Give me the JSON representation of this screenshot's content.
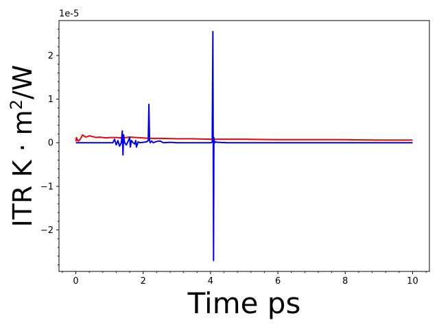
{
  "chart_data": {
    "type": "line",
    "title": "",
    "xlabel": "Time ps",
    "ylabel": "ITR K · m²/W",
    "ylabel_parts": {
      "main": "ITR K · m",
      "sup": "2",
      "tail": "/W"
    },
    "y_offset_label": "1e-5",
    "xlim": [
      -0.5,
      10.5
    ],
    "ylim": [
      -2.95,
      2.8
    ],
    "y_scale_note": "values in units of 1e-5",
    "x_ticks": [
      0,
      2,
      4,
      6,
      8,
      10
    ],
    "x_tick_labels": [
      "0",
      "2",
      "4",
      "6",
      "8",
      "10"
    ],
    "y_ticks": [
      -2,
      -1,
      0,
      1,
      2
    ],
    "y_tick_labels": [
      "−2",
      "−1",
      "0",
      "1",
      "2"
    ],
    "grid": false,
    "legend": "none",
    "series": [
      {
        "color": "#e8000b",
        "x": [
          0.0,
          0.02,
          0.05,
          0.08,
          0.12,
          0.16,
          0.2,
          0.25,
          0.3,
          0.35,
          0.4,
          0.5,
          0.6,
          0.7,
          0.8,
          0.9,
          1.0,
          1.2,
          1.4,
          1.6,
          1.8,
          2.0,
          2.2,
          2.5,
          3.0,
          3.5,
          4.0,
          4.5,
          5.0,
          6.0,
          7.0,
          8.0,
          9.0,
          10.0
        ],
        "y": [
          0.03,
          0.12,
          0.05,
          0.04,
          0.07,
          0.12,
          0.18,
          0.15,
          0.13,
          0.14,
          0.16,
          0.14,
          0.12,
          0.13,
          0.12,
          0.11,
          0.12,
          0.12,
          0.11,
          0.13,
          0.12,
          0.11,
          0.1,
          0.1,
          0.09,
          0.09,
          0.08,
          0.08,
          0.08,
          0.07,
          0.07,
          0.07,
          0.06,
          0.06
        ]
      },
      {
        "color": "#0000e0",
        "x": [
          0.0,
          1.1,
          1.15,
          1.2,
          1.25,
          1.3,
          1.35,
          1.38,
          1.4,
          1.42,
          1.45,
          1.5,
          1.55,
          1.6,
          1.62,
          1.65,
          1.7,
          1.75,
          1.78,
          1.8,
          1.85,
          1.9,
          2.0,
          2.1,
          2.15,
          2.17,
          2.19,
          2.21,
          2.25,
          2.3,
          2.4,
          2.5,
          2.6,
          2.8,
          3.0,
          3.5,
          4.0,
          4.05,
          4.07,
          4.09,
          4.1,
          4.11,
          4.13,
          4.15,
          4.2,
          4.5,
          5.0,
          6.0,
          7.0,
          8.0,
          9.0,
          10.0
        ],
        "y": [
          0.0,
          0.0,
          0.08,
          -0.05,
          0.05,
          -0.08,
          0.0,
          0.27,
          -0.28,
          0.18,
          0.0,
          -0.05,
          0.03,
          0.12,
          -0.1,
          0.05,
          0.0,
          -0.03,
          0.05,
          -0.1,
          0.02,
          0.0,
          0.01,
          0.02,
          0.05,
          0.88,
          0.05,
          0.0,
          0.04,
          0.0,
          0.03,
          0.04,
          0.0,
          0.01,
          0.0,
          0.0,
          0.0,
          0.01,
          2.55,
          -2.7,
          0.12,
          0.05,
          0.0,
          0.02,
          0.01,
          0.0,
          0.0,
          0.0,
          0.0,
          0.0,
          0.0,
          0.0
        ]
      }
    ]
  }
}
